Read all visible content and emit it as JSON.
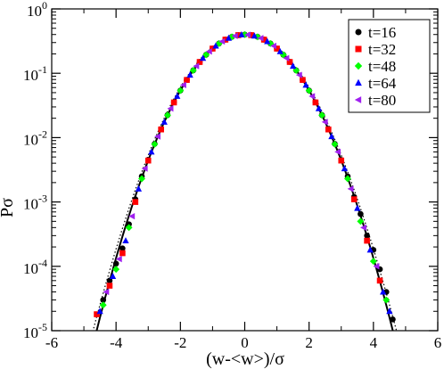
{
  "chart_data": {
    "type": "scatter",
    "title": "",
    "xlabel": "(w-<w>)/σ",
    "ylabel": "Pσ",
    "xlim": [
      -6,
      6
    ],
    "ylim": [
      1e-05,
      1
    ],
    "yscale": "log",
    "grid": false,
    "legend_position": "top-right",
    "x_ticks": [
      -6,
      -4,
      -2,
      0,
      2,
      4,
      6
    ],
    "y_ticks": [
      {
        "base": "10",
        "exp": "0",
        "value": 1
      },
      {
        "base": "10",
        "exp": "-1",
        "value": 0.1
      },
      {
        "base": "10",
        "exp": "-2",
        "value": 0.01
      },
      {
        "base": "10",
        "exp": "-3",
        "value": 0.001
      },
      {
        "base": "10",
        "exp": "-4",
        "value": 0.0001
      },
      {
        "base": "10",
        "exp": "-5",
        "value": 1e-05
      }
    ],
    "series": [
      {
        "name": "t=16",
        "marker": "circle",
        "color": "#000000",
        "x": [
          -4.4,
          -4.2,
          -4.0,
          -3.8,
          -3.6,
          -3.4,
          -3.2,
          -3.0,
          -2.8,
          -2.6,
          -2.4,
          -2.2,
          -2.0,
          -1.8,
          -1.6,
          -1.4,
          -1.2,
          -1.0,
          -0.8,
          -0.6,
          -0.4,
          -0.2,
          0.0,
          0.2,
          0.4,
          0.6,
          0.8,
          1.0,
          1.2,
          1.4,
          1.6,
          1.8,
          2.0,
          2.2,
          2.4,
          2.6,
          2.8,
          3.0,
          3.2,
          3.4,
          3.6,
          3.8,
          4.0,
          4.2,
          4.4,
          4.6
        ],
        "y": [
          3e-05,
          6e-05,
          0.00011,
          0.00019,
          0.00045,
          0.0011,
          0.0025,
          0.0045,
          0.008,
          0.0136,
          0.0224,
          0.0355,
          0.054,
          0.079,
          0.111,
          0.15,
          0.194,
          0.242,
          0.29,
          0.333,
          0.368,
          0.391,
          0.399,
          0.391,
          0.368,
          0.333,
          0.29,
          0.242,
          0.194,
          0.15,
          0.111,
          0.079,
          0.054,
          0.0355,
          0.0224,
          0.0136,
          0.008,
          0.0045,
          0.0025,
          0.0012,
          0.00065,
          0.0003,
          0.00018,
          9e-05,
          4e-05,
          1.5e-05
        ]
      },
      {
        "name": "t=32",
        "marker": "square",
        "color": "#ff0000",
        "x": [
          -4.6,
          -4.2,
          -3.8,
          -3.4,
          -3.0,
          -2.6,
          -2.2,
          -1.8,
          -1.4,
          -1.0,
          -0.6,
          -0.2,
          0.2,
          0.6,
          1.0,
          1.4,
          1.8,
          2.2,
          2.6,
          3.0,
          3.4,
          3.8,
          4.2
        ],
        "y": [
          1.8e-05,
          5e-05,
          0.00016,
          0.001,
          0.0044,
          0.0134,
          0.0352,
          0.0788,
          0.1498,
          0.2418,
          0.333,
          0.391,
          0.391,
          0.333,
          0.2418,
          0.1498,
          0.0788,
          0.0352,
          0.0134,
          0.0044,
          0.0011,
          0.00025,
          6e-05
        ]
      },
      {
        "name": "t=48",
        "marker": "diamond",
        "color": "#00ff00",
        "x": [
          -4.4,
          -4.0,
          -3.6,
          -3.2,
          -2.8,
          -2.4,
          -2.0,
          -1.6,
          -1.2,
          -0.8,
          -0.4,
          0.0,
          0.4,
          0.8,
          1.2,
          1.6,
          2.0,
          2.4,
          2.8,
          3.2,
          3.6,
          4.0,
          4.4
        ],
        "y": [
          2.5e-05,
          9e-05,
          0.0004,
          0.0023,
          0.0079,
          0.0223,
          0.0539,
          0.1109,
          0.1941,
          0.2897,
          0.3683,
          0.3989,
          0.3683,
          0.2897,
          0.1941,
          0.1109,
          0.0539,
          0.0223,
          0.0079,
          0.0023,
          0.0005,
          0.00012,
          3e-05
        ]
      },
      {
        "name": "t=64",
        "marker": "triangle-up",
        "color": "#0000ff",
        "x": [
          -4.5,
          -4.1,
          -3.7,
          -3.3,
          -2.9,
          -2.5,
          -2.1,
          -1.7,
          -1.3,
          -0.9,
          -0.5,
          -0.1,
          0.3,
          0.7,
          1.1,
          1.5,
          1.9,
          2.3,
          2.7,
          3.1,
          3.5,
          3.9,
          4.3,
          4.5
        ],
        "y": [
          2e-05,
          7e-05,
          0.00025,
          0.0016,
          0.006,
          0.0175,
          0.044,
          0.094,
          0.1714,
          0.2661,
          0.3521,
          0.397,
          0.3814,
          0.3123,
          0.2179,
          0.1295,
          0.0656,
          0.0283,
          0.0104,
          0.0033,
          0.0008,
          0.00018,
          4e-05,
          2e-05
        ]
      },
      {
        "name": "t=80",
        "marker": "triangle-left",
        "color": "#a020f0",
        "x": [
          -4.3,
          -3.9,
          -3.5,
          -3.1,
          -2.7,
          -2.3,
          -1.9,
          -1.5,
          -1.1,
          -0.7,
          -0.3,
          0.1,
          0.5,
          0.9,
          1.3,
          1.7,
          2.1,
          2.5,
          2.9,
          3.3,
          3.7,
          4.1
        ],
        "y": [
          4e-05,
          0.00013,
          0.0006,
          0.0033,
          0.0104,
          0.0283,
          0.0656,
          0.1295,
          0.2179,
          0.3123,
          0.3814,
          0.397,
          0.3521,
          0.2661,
          0.1714,
          0.094,
          0.044,
          0.0175,
          0.006,
          0.0016,
          0.0004,
          0.0001
        ]
      }
    ],
    "reference_curve": {
      "style": "solid",
      "color": "#000000",
      "form": "standard-normal-density"
    },
    "dotted_curve": {
      "style": "dotted",
      "color": "#000000",
      "form": "standard-normal-density"
    }
  }
}
